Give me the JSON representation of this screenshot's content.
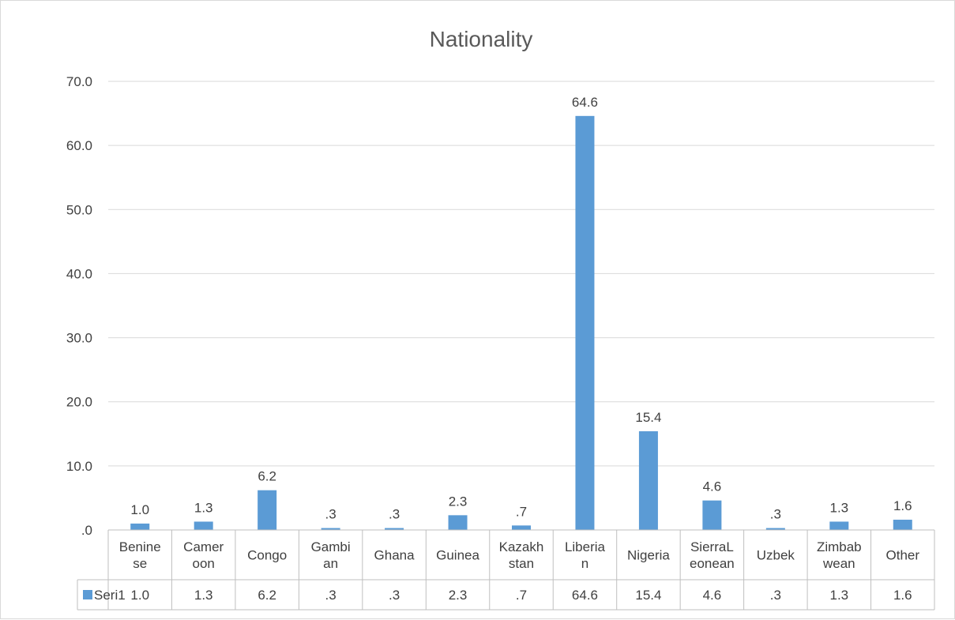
{
  "chart_data": {
    "type": "bar",
    "title": "Nationality",
    "xlabel": "",
    "ylabel": "",
    "ylim": [
      0,
      70
    ],
    "y_ticks": [
      ".0",
      "10.0",
      "20.0",
      "30.0",
      "40.0",
      "50.0",
      "60.0",
      "70.0"
    ],
    "grid": true,
    "legend": "data-table",
    "categories": [
      [
        "Benine",
        "se"
      ],
      [
        "Camer",
        "oon"
      ],
      [
        "Congo"
      ],
      [
        "Gambi",
        "an"
      ],
      [
        "Ghana"
      ],
      [
        "Guinea"
      ],
      [
        "Kazakh",
        "stan"
      ],
      [
        "Liberia",
        "n"
      ],
      [
        "Nigeria"
      ],
      [
        "SierraL",
        "eonean"
      ],
      [
        "Uzbek"
      ],
      [
        "Zimbab",
        "wean"
      ],
      [
        "Other"
      ]
    ],
    "series": [
      {
        "name": "Seri1",
        "color": "#5b9bd5",
        "values": [
          1.0,
          1.3,
          6.2,
          0.3,
          0.3,
          2.3,
          0.7,
          64.6,
          15.4,
          4.6,
          0.3,
          1.3,
          1.6
        ],
        "labels": [
          "1.0",
          "1.3",
          "6.2",
          ".3",
          ".3",
          "2.3",
          ".7",
          "64.6",
          "15.4",
          "4.6",
          ".3",
          "1.3",
          "1.6"
        ]
      }
    ]
  }
}
